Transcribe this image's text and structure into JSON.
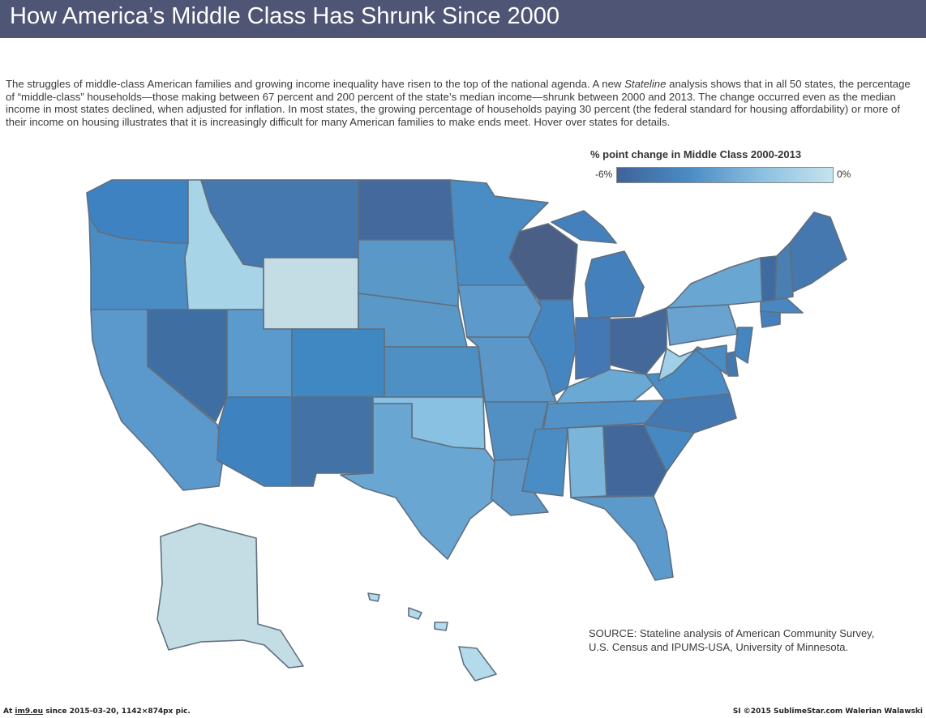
{
  "header": {
    "title": "How America’s Middle Class Has Shrunk Since 2000"
  },
  "intro": {
    "part1": "The struggles of middle-class American families and growing income inequality have risen to the top of the national agenda. A new ",
    "emphasis": "Stateline",
    "part2": " analysis shows that in all 50 states, the percentage of “middle-class” households—those making between 67 percent and 200 percent of the state’s median income—shrunk between 2000 and 2013. The change occurred even as the median income in most states declined, when adjusted for inflation. In most states, the growing percentage of households paying 30 percent (the federal standard for housing affordability) or more of their income on housing illustrates that it is increasingly difficult for many American families to make ends meet. Hover over states for details."
  },
  "legend": {
    "title": "% point change  in Middle Class 2000-2013",
    "min_label": "-6%",
    "max_label": "0%",
    "colors": [
      "#3f6397",
      "#4a8cc4",
      "#8bbfe0",
      "#c6e3ef"
    ]
  },
  "map": {
    "state_colors": {
      "WA": "#3f82c2",
      "OR": "#4a8cc4",
      "CA": "#5b98cc",
      "NV": "#3f6ea3",
      "ID": "#a8d4e8",
      "MT": "#4478ae",
      "WY": "#c4dde4",
      "UT": "#5a9acc",
      "AZ": "#3f82c0",
      "CO": "#4088c2",
      "NM": "#4272a6",
      "ND": "#43699d",
      "SD": "#5a98c8",
      "NE": "#5a98c8",
      "KS": "#4e8fc4",
      "OK": "#89c1e2",
      "TX": "#6aa6d2",
      "MN": "#4a8cc4",
      "IA": "#5d9acb",
      "MO": "#5b97c8",
      "AR": "#5290c4",
      "LA": "#5d98c8",
      "WI": "#4a5f85",
      "IL": "#4585c0",
      "MI": "#4480bc",
      "IN": "#4478b4",
      "OH": "#44689a",
      "KY": "#6aa9d4",
      "TN": "#5292c6",
      "MS": "#4a8cc4",
      "AL": "#7cb5da",
      "GA": "#41679b",
      "FL": "#5d9acc",
      "SC": "#4688c2",
      "NC": "#4478b0",
      "VA": "#4a8cc4",
      "WV": "#9fd0e8",
      "PA": "#6aa3cf",
      "NY": "#6aa6d2",
      "ME": "#4478ae",
      "VT": "#3f6ca0",
      "NH": "#4a7fb2",
      "MA": "#4a86c0",
      "CT": "#4680bc",
      "NJ": "#4585c0",
      "MD": "#4a8cc4",
      "DE": "#4478ae",
      "AK": "#c4dde4",
      "HI": "#b4dbeb"
    }
  },
  "source": {
    "line1": "SOURCE: Stateline analysis of American Community Survey,",
    "line2": "U.S. Census and IPUMS-USA, University of Minnesota."
  },
  "footer": {
    "left_prefix": "At ",
    "site": "im9.eu",
    "left_suffix": " since 2015-03-20, 1142×874px pic.",
    "right": "SI ©2015 SublimeStar.com Walerian Walawski"
  }
}
